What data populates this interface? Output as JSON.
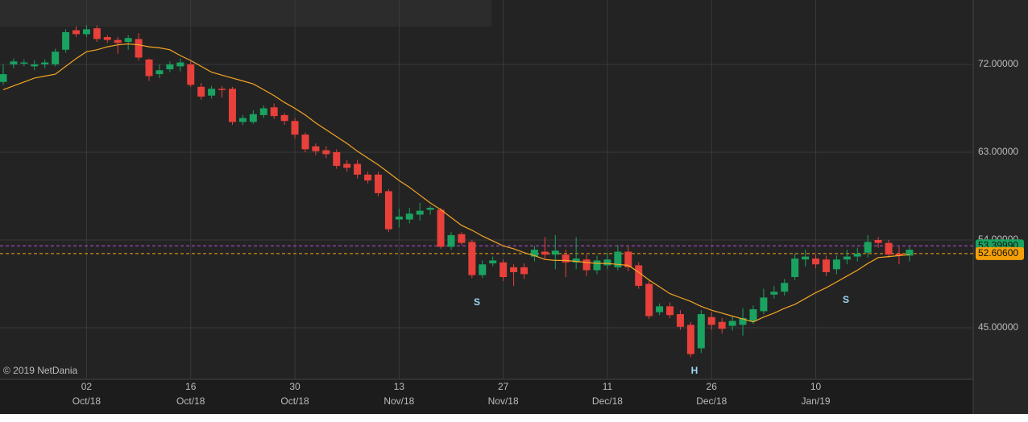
{
  "chart_data": {
    "type": "candlestick",
    "categories": [
      null,
      null,
      null,
      null,
      null,
      null,
      null,
      null,
      {
        "day": "02",
        "month": "Oct/18"
      },
      null,
      null,
      null,
      null,
      null,
      null,
      null,
      null,
      null,
      {
        "day": "16",
        "month": "Oct/18"
      },
      null,
      null,
      null,
      null,
      null,
      null,
      null,
      null,
      null,
      {
        "day": "30",
        "month": "Oct/18"
      },
      null,
      null,
      null,
      null,
      null,
      null,
      null,
      null,
      null,
      {
        "day": "13",
        "month": "Nov/18"
      },
      null,
      null,
      null,
      null,
      null,
      null,
      null,
      null,
      null,
      {
        "day": "27",
        "month": "Nov/18"
      },
      null,
      null,
      null,
      null,
      null,
      null,
      null,
      null,
      null,
      {
        "day": "11",
        "month": "Dec/18"
      },
      null,
      null,
      null,
      null,
      null,
      null,
      null,
      null,
      null,
      {
        "day": "26",
        "month": "Dec/18"
      },
      null,
      null,
      null,
      null,
      null,
      null,
      null,
      null,
      null,
      {
        "day": "10",
        "month": "Jan/19"
      },
      null,
      null,
      null,
      null,
      null,
      null,
      null,
      null,
      null
    ],
    "open": [
      70.2,
      72.0,
      72.1,
      71.8,
      72.0,
      72.0,
      73.5,
      75.5,
      75.1,
      75.7,
      74.8,
      74.5,
      74.3,
      74.6,
      72.5,
      71.0,
      71.5,
      71.8,
      72.0,
      69.7,
      68.8,
      69.5,
      69.5,
      66.1,
      66.1,
      66.8,
      67.6,
      66.8,
      66.2,
      64.8,
      63.6,
      63.2,
      63.0,
      61.8,
      61.8,
      60.7,
      60.7,
      59.0,
      56.1,
      56.1,
      56.6,
      57.1,
      57.1,
      53.3,
      54.6,
      53.8,
      50.4,
      51.6,
      51.7,
      51.2,
      51.2,
      52.3,
      52.8,
      52.5,
      52.5,
      51.7,
      52.0,
      50.9,
      51.4,
      51.2,
      52.8,
      51.4,
      49.5,
      46.6,
      47.2,
      46.4,
      45.3,
      42.9,
      46.1,
      45.6,
      45.2,
      45.3,
      45.7,
      46.7,
      48.4,
      48.7,
      50.2,
      52.0,
      52.1,
      52.0,
      51.0,
      52.0,
      52.3,
      52.7,
      54.0,
      53.7,
      52.6,
      52.4
    ],
    "high": [
      72.0,
      72.6,
      72.5,
      72.4,
      72.5,
      73.6,
      75.6,
      75.9,
      76.0,
      76.0,
      75.0,
      74.8,
      75.0,
      75.2,
      72.6,
      72.0,
      72.3,
      72.6,
      72.3,
      70.1,
      69.8,
      69.8,
      69.7,
      66.8,
      67.3,
      67.8,
      68.0,
      67.0,
      66.5,
      65.0,
      63.9,
      63.6,
      63.3,
      62.2,
      62.2,
      61.0,
      61.0,
      59.2,
      57.2,
      57.3,
      57.8,
      57.5,
      57.3,
      54.8,
      54.8,
      54.0,
      51.9,
      52.3,
      52.0,
      51.5,
      51.6,
      53.4,
      54.3,
      54.5,
      53.0,
      54.3,
      52.5,
      52.4,
      52.7,
      53.5,
      53.3,
      51.7,
      49.8,
      47.5,
      47.6,
      46.8,
      45.6,
      46.8,
      46.6,
      46.0,
      46.2,
      47.0,
      47.3,
      49.0,
      49.3,
      50.0,
      52.6,
      53.0,
      52.5,
      52.4,
      52.4,
      53.0,
      53.2,
      54.5,
      54.3,
      54.0,
      53.3,
      53.3
    ],
    "low": [
      69.9,
      71.6,
      71.8,
      71.4,
      71.6,
      71.8,
      73.2,
      74.8,
      74.8,
      74.3,
      74.2,
      73.1,
      73.5,
      72.4,
      70.3,
      70.6,
      71.2,
      71.3,
      69.7,
      68.4,
      68.5,
      68.6,
      65.8,
      65.8,
      65.9,
      66.5,
      66.4,
      65.8,
      64.4,
      63.0,
      62.7,
      62.4,
      61.3,
      61.0,
      60.3,
      59.8,
      58.5,
      54.8,
      55.3,
      55.7,
      56.0,
      56.6,
      53.1,
      53.0,
      53.5,
      50.1,
      50.1,
      51.3,
      49.8,
      49.3,
      50.0,
      51.8,
      52.0,
      51.0,
      50.2,
      51.0,
      50.3,
      50.5,
      51.0,
      50.9,
      50.8,
      49.0,
      45.9,
      46.3,
      46.0,
      44.8,
      42.0,
      42.4,
      44.8,
      44.4,
      44.7,
      44.2,
      45.4,
      46.4,
      48.0,
      48.3,
      49.9,
      51.3,
      51.1,
      50.3,
      50.5,
      51.5,
      51.8,
      52.2,
      53.2,
      52.2,
      51.5,
      51.8
    ],
    "close": [
      71.0,
      72.3,
      72.2,
      72.0,
      72.2,
      73.3,
      75.3,
      75.1,
      75.6,
      74.6,
      74.5,
      74.2,
      74.7,
      72.7,
      70.8,
      71.4,
      72.0,
      72.2,
      69.9,
      68.7,
      69.5,
      69.4,
      66.1,
      66.5,
      66.9,
      67.5,
      66.7,
      66.2,
      64.8,
      63.3,
      63.1,
      62.8,
      61.6,
      61.4,
      60.7,
      60.1,
      58.8,
      55.1,
      56.4,
      56.7,
      57.0,
      57.3,
      53.3,
      54.5,
      53.7,
      50.4,
      51.5,
      51.9,
      50.2,
      50.7,
      50.5,
      53.0,
      52.5,
      52.9,
      51.7,
      52.1,
      50.9,
      51.9,
      52.0,
      52.8,
      51.2,
      49.3,
      46.2,
      47.2,
      46.3,
      45.1,
      42.3,
      46.4,
      45.3,
      44.9,
      45.7,
      46.0,
      46.9,
      48.1,
      48.7,
      49.6,
      52.1,
      52.3,
      51.5,
      50.7,
      52.0,
      52.3,
      52.6,
      53.8,
      53.7,
      52.5,
      52.4,
      53.0
    ],
    "up_color": "#1aa260",
    "down_color": "#e8403a",
    "moving_average": {
      "color": "#f5a623",
      "values": [
        69.4,
        69.8,
        70.2,
        70.6,
        70.8,
        71.0,
        71.8,
        72.6,
        73.3,
        73.5,
        73.8,
        74.0,
        74.1,
        74.0,
        73.8,
        73.7,
        73.5,
        72.9,
        72.4,
        71.8,
        71.2,
        70.9,
        70.6,
        70.3,
        70.0,
        69.4,
        68.8,
        68.1,
        67.5,
        66.8,
        66.0,
        65.3,
        64.6,
        63.9,
        63.1,
        62.4,
        61.7,
        60.9,
        60.1,
        59.4,
        58.6,
        57.8,
        57.1,
        56.3,
        55.5,
        55.0,
        54.4,
        53.9,
        53.4,
        53.1,
        52.7,
        52.4,
        52.0,
        51.9,
        51.9,
        51.8,
        51.7,
        51.6,
        51.6,
        51.5,
        51.4,
        50.7,
        49.9,
        49.2,
        48.5,
        48.1,
        47.7,
        47.2,
        46.8,
        46.5,
        46.2,
        45.9,
        45.6,
        46.1,
        46.5,
        47.0,
        47.4,
        48.0,
        48.6,
        49.1,
        49.7,
        50.3,
        50.9,
        51.6,
        52.2,
        52.3,
        52.4,
        52.5
      ]
    },
    "ylim": [
      39.8,
      78.6
    ],
    "yticks": [
      {
        "value": 45,
        "label": "45.00000"
      },
      {
        "value": 54,
        "label": "54.00000"
      },
      {
        "value": 63,
        "label": "63.00000"
      },
      {
        "value": 72,
        "label": "72.00000"
      }
    ],
    "price_lines": [
      {
        "value": 53.3999,
        "label": "53.39990",
        "color": "#1aa260",
        "line_color": "#c04ce0"
      },
      {
        "value": 52.606,
        "label": "52.60600",
        "color": "#f5a00a",
        "line_color": "#f5a00a"
      }
    ],
    "annotations": [
      "S",
      "H",
      "S"
    ],
    "copyright": "© 2019 NetDania",
    "grid": true
  }
}
